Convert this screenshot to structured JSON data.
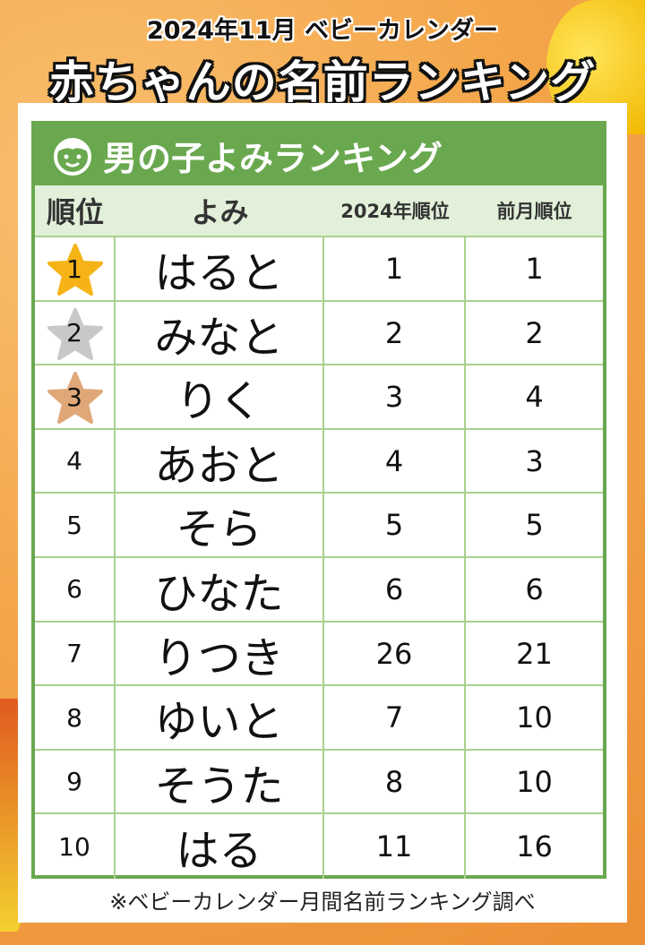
{
  "header": {
    "subtitle": "2024年11月 ベビーカレンダー",
    "title": "赤ちゃんの名前ランキング"
  },
  "table": {
    "title": "男の子よみランキング",
    "title_icon": "boy-face-icon",
    "columns": [
      "順位",
      "よみ",
      "2024年順位",
      "前月順位"
    ],
    "rows": [
      {
        "rank": "1",
        "yomi": "はると",
        "year_rank": "1",
        "prev_rank": "1",
        "medal": "#f5b316"
      },
      {
        "rank": "2",
        "yomi": "みなと",
        "year_rank": "2",
        "prev_rank": "2",
        "medal": "#c8c8c8"
      },
      {
        "rank": "3",
        "yomi": "りく",
        "year_rank": "3",
        "prev_rank": "4",
        "medal": "#e0a878"
      },
      {
        "rank": "4",
        "yomi": "あおと",
        "year_rank": "4",
        "prev_rank": "3"
      },
      {
        "rank": "5",
        "yomi": "そら",
        "year_rank": "5",
        "prev_rank": "5"
      },
      {
        "rank": "6",
        "yomi": "ひなた",
        "year_rank": "6",
        "prev_rank": "6"
      },
      {
        "rank": "7",
        "yomi": "りつき",
        "year_rank": "26",
        "prev_rank": "21"
      },
      {
        "rank": "8",
        "yomi": "ゆいと",
        "year_rank": "7",
        "prev_rank": "10"
      },
      {
        "rank": "9",
        "yomi": "そうた",
        "year_rank": "8",
        "prev_rank": "10"
      },
      {
        "rank": "10",
        "yomi": "はる",
        "year_rank": "11",
        "prev_rank": "16"
      }
    ]
  },
  "footnote": "※ベビーカレンダー月間名前ランキング調べ",
  "colors": {
    "green": "#6aa84f",
    "light_green": "#e2f0d9",
    "background": "#f4a64a"
  }
}
